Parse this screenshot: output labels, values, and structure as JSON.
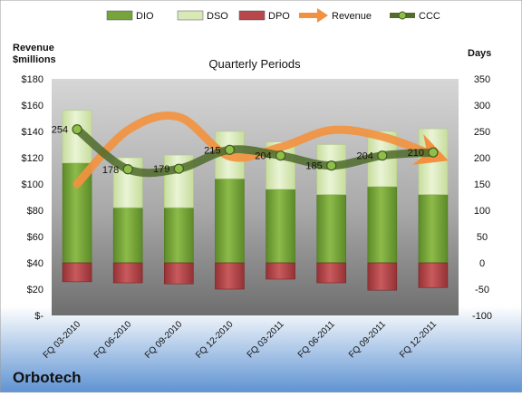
{
  "company": "Orbotech",
  "legend": {
    "items": [
      {
        "label": "DIO",
        "kind": "bar",
        "color": "#76a33a"
      },
      {
        "label": "DSO",
        "kind": "bar",
        "color": "#d8e8b6"
      },
      {
        "label": "DPO",
        "kind": "bar",
        "color": "#b7474a"
      },
      {
        "label": "Revenue",
        "kind": "arrow",
        "color": "#f29240"
      },
      {
        "label": "CCC",
        "kind": "line-marker",
        "color": "#536b2c"
      }
    ]
  },
  "chart_data": {
    "type": "bar",
    "title": "Quarterly Periods",
    "ylabel_left": "Revenue\n$millions",
    "ylabel_right": "Days",
    "categories": [
      "FQ 03-2010",
      "FQ 06-2010",
      "FQ 09-2010",
      "FQ 12-2010",
      "FQ 03-2011",
      "FQ 06-2011",
      "FQ 09-2011",
      "FQ 12-2011"
    ],
    "left_axis": {
      "min": 0,
      "max": 180,
      "step": 20,
      "tick_labels": [
        "$-",
        "$20",
        "$40",
        "$60",
        "$80",
        "$100",
        "$120",
        "$140",
        "$160",
        "$180"
      ]
    },
    "right_axis": {
      "min": -100,
      "max": 350,
      "step": 50,
      "tick_labels": [
        "-100",
        "-50",
        "0",
        "50",
        "100",
        "150",
        "200",
        "250",
        "300",
        "350"
      ]
    },
    "series": [
      {
        "name": "DIO",
        "axis": "right",
        "type": "stacked-bar",
        "color": "#76a33a",
        "values": [
          190,
          105,
          105,
          160,
          140,
          130,
          145,
          130
        ]
      },
      {
        "name": "DSO",
        "axis": "right",
        "type": "stacked-bar",
        "color": "#d8e8b6",
        "values": [
          100,
          95,
          100,
          90,
          90,
          95,
          105,
          125
        ]
      },
      {
        "name": "DPO",
        "axis": "right",
        "type": "negative-bar",
        "color": "#b7474a",
        "values": [
          -36,
          -38,
          -40,
          -50,
          -31,
          -38,
          -52,
          -47
        ]
      },
      {
        "name": "Revenue",
        "axis": "left",
        "type": "smooth-line",
        "color": "#f29240",
        "values": [
          100,
          141,
          151,
          121,
          128,
          141,
          136,
          122
        ]
      },
      {
        "name": "CCC",
        "axis": "right",
        "type": "line-marker",
        "color": "#536b2c",
        "values": [
          254,
          178,
          179,
          215,
          204,
          185,
          204,
          210
        ]
      }
    ],
    "ccc_data_labels": [
      "254",
      "178",
      "179",
      "215",
      "204",
      "185",
      "204",
      "210"
    ],
    "grid": false,
    "legend_position": "top"
  }
}
